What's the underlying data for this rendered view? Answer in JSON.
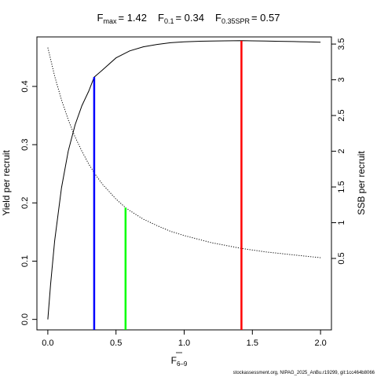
{
  "chart_data": {
    "type": "line",
    "title": {
      "fmax_label": "F",
      "fmax_sub": "max",
      "fmax_value": "= 1.42",
      "f01_label": "F",
      "f01_sub": "0.1",
      "f01_value": "= 0.34",
      "fspr_label": "F",
      "fspr_sub": "0.35SPR",
      "fspr_value": "= 0.57"
    },
    "xlabel": "F",
    "xlabel_sub": "6–9",
    "ylabel_left": "Yield per recruit",
    "ylabel_right": "SSB per recruit",
    "xlim": [
      -0.08,
      2.08
    ],
    "ylim_left": [
      -0.018,
      0.485
    ],
    "ylim_right": [
      -0.5,
      3.6
    ],
    "x_ticks": [
      0,
      0.5,
      1,
      1.5,
      2
    ],
    "x_tick_labels": [
      "0.0",
      "0.5",
      "1.0",
      "1.5",
      "2.0"
    ],
    "y_left_ticks": [
      0,
      0.1,
      0.2,
      0.3,
      0.4
    ],
    "y_left_tick_labels": [
      "0.0",
      "0.1",
      "0.2",
      "0.3",
      "0.4"
    ],
    "y_right_ticks": [
      0.5,
      1,
      1.5,
      2,
      2.5,
      3,
      3.5
    ],
    "y_right_tick_labels": [
      "0.5",
      "1",
      "1.5",
      "2",
      "2.5",
      "3",
      "3.5"
    ],
    "series": [
      {
        "axis": "left",
        "line_style": "solid",
        "color": "#000000",
        "x": [
          0,
          0.02,
          0.05,
          0.1,
          0.15,
          0.2,
          0.25,
          0.3,
          0.34,
          0.4,
          0.5,
          0.6,
          0.7,
          0.8,
          0.9,
          1.0,
          1.1,
          1.2,
          1.3,
          1.42,
          1.5,
          1.6,
          1.7,
          1.8,
          1.9,
          2.0
        ],
        "y": [
          0,
          0.06,
          0.135,
          0.226,
          0.289,
          0.334,
          0.367,
          0.392,
          0.416,
          0.428,
          0.449,
          0.461,
          0.468,
          0.472,
          0.475,
          0.4765,
          0.4775,
          0.478,
          0.4783,
          0.4785,
          0.4783,
          0.478,
          0.4775,
          0.477,
          0.4765,
          0.476
        ]
      },
      {
        "axis": "right",
        "line_style": "dotted",
        "color": "#000000",
        "x": [
          0,
          0.05,
          0.1,
          0.15,
          0.2,
          0.25,
          0.3,
          0.35,
          0.4,
          0.5,
          0.57,
          0.6,
          0.7,
          0.8,
          0.9,
          1.0,
          1.2,
          1.42,
          1.6,
          1.8,
          2.0
        ],
        "y": [
          3.45,
          3.05,
          2.72,
          2.44,
          2.2,
          2.0,
          1.82,
          1.67,
          1.54,
          1.33,
          1.21,
          1.17,
          1.05,
          0.96,
          0.88,
          0.82,
          0.72,
          0.64,
          0.59,
          0.55,
          0.51
        ]
      }
    ],
    "reference_lines": [
      {
        "name": "F0.1",
        "x": 0.34,
        "y_top": 0.416,
        "axis": "left",
        "color": "#0000ff"
      },
      {
        "name": "F0.35SPR",
        "x": 0.57,
        "y_top": 1.21,
        "axis": "right",
        "color": "#00ff00"
      },
      {
        "name": "Fmax",
        "x": 1.42,
        "y_top": 0.4785,
        "axis": "left",
        "color": "#ff0000"
      }
    ],
    "grid": false,
    "footnote": "stockassessment.org, NIPAG_2025_AnBu.r19299, git:1cc464b8066"
  }
}
